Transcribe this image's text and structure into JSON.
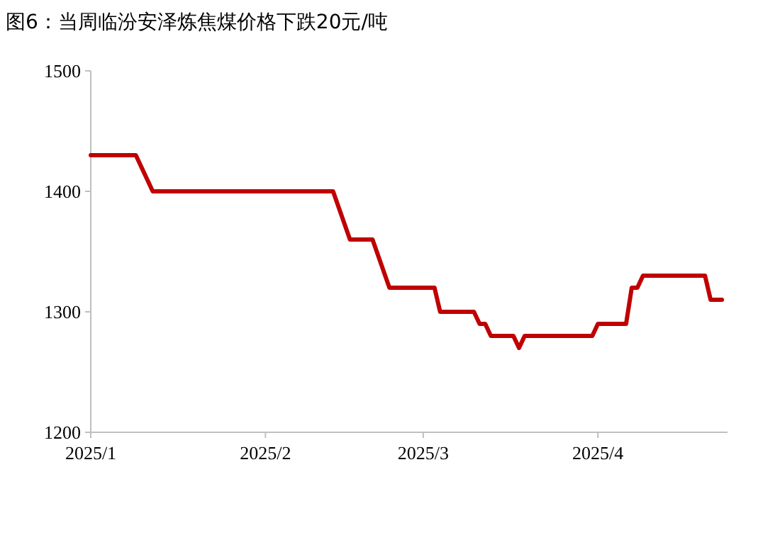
{
  "chart_data": {
    "type": "line",
    "title": "图6：当周临汾安泽炼焦煤价格下跌20元/吨",
    "x": [
      "2025-01-01",
      "2025-01-09",
      "2025-01-12",
      "2025-02-13",
      "2025-02-16",
      "2025-02-20",
      "2025-02-23",
      "2025-03-03",
      "2025-03-04",
      "2025-03-10",
      "2025-03-11",
      "2025-03-12",
      "2025-03-13",
      "2025-03-17",
      "2025-03-18",
      "2025-03-19",
      "2025-03-31",
      "2025-04-01",
      "2025-04-06",
      "2025-04-07",
      "2025-04-08",
      "2025-04-09",
      "2025-04-20",
      "2025-04-21",
      "2025-04-23"
    ],
    "series": [
      {
        "color": "#c00000",
        "values": [
          1430,
          1430,
          1400,
          1400,
          1360,
          1360,
          1320,
          1320,
          1300,
          1300,
          1290,
          1290,
          1280,
          1280,
          1270,
          1280,
          1280,
          1290,
          1290,
          1320,
          1320,
          1330,
          1330,
          1310,
          1310
        ]
      }
    ],
    "xlim": [
      "2025-01-01",
      "2025-04-24"
    ],
    "xticks": [
      {
        "value": "2025-01-01",
        "label": "2025/1"
      },
      {
        "value": "2025-02-01",
        "label": "2025/2"
      },
      {
        "value": "2025-03-01",
        "label": "2025/3"
      },
      {
        "value": "2025-04-01",
        "label": "2025/4"
      }
    ],
    "ylim": [
      1200,
      1500
    ],
    "yticks": [
      1200,
      1300,
      1400,
      1500
    ],
    "marker": "none",
    "line_style": "solid"
  }
}
